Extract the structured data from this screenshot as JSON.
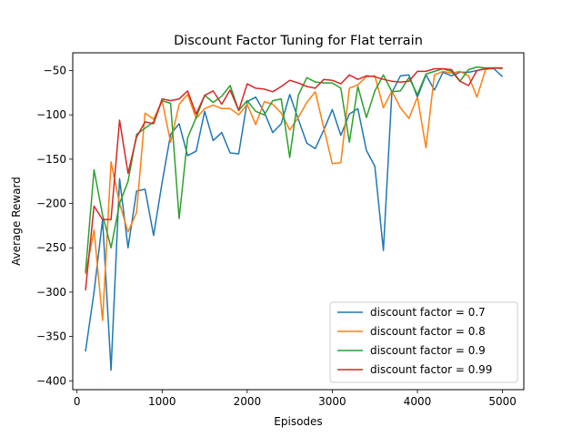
{
  "chart_data": {
    "type": "line",
    "title": "Discount Factor Tuning for Flat terrain",
    "xlabel": "Episodes",
    "ylabel": "Average Reward",
    "xlim": [
      -50,
      5250
    ],
    "ylim": [
      -410,
      -30
    ],
    "xticks": [
      0,
      1000,
      2000,
      3000,
      4000,
      5000
    ],
    "yticks": [
      -400,
      -350,
      -300,
      -250,
      -200,
      -150,
      -100,
      -50
    ],
    "grid": false,
    "legend_position": "lower-right",
    "x": [
      100,
      200,
      300,
      400,
      500,
      600,
      700,
      800,
      900,
      1000,
      1100,
      1200,
      1300,
      1400,
      1500,
      1600,
      1700,
      1800,
      1900,
      2000,
      2100,
      2200,
      2300,
      2400,
      2500,
      2600,
      2700,
      2800,
      2900,
      3000,
      3100,
      3200,
      3300,
      3400,
      3500,
      3600,
      3700,
      3800,
      3900,
      4000,
      4100,
      4200,
      4300,
      4400,
      4500,
      4600,
      4700,
      4800,
      4900,
      5000
    ],
    "series": [
      {
        "name": "discount factor = 0.7",
        "color": "#1f77b4",
        "values": [
          -367,
          -300,
          -218,
          -388,
          -172,
          -250,
          -186,
          -184,
          -236,
          -176,
          -122,
          -110,
          -146,
          -141,
          -96,
          -129,
          -120,
          -143,
          -144,
          -85,
          -80,
          -97,
          -120,
          -110,
          -77,
          -105,
          -132,
          -138,
          -117,
          -94,
          -123,
          -99,
          -93,
          -140,
          -158,
          -253,
          -75,
          -56,
          -55,
          -80,
          -55,
          -72,
          -52,
          -56,
          -52,
          -52,
          -50,
          -48,
          -48,
          -57
        ]
      },
      {
        "name": "discount factor = 0.8",
        "color": "#ff7f0e",
        "values": [
          -280,
          -230,
          -332,
          -153,
          -200,
          -232,
          -210,
          -98,
          -105,
          -84,
          -131,
          -88,
          -77,
          -104,
          -93,
          -89,
          -93,
          -93,
          -100,
          -88,
          -111,
          -85,
          -88,
          -98,
          -117,
          -103,
          -86,
          -74,
          -115,
          -155,
          -154,
          -70,
          -66,
          -57,
          -56,
          -92,
          -73,
          -92,
          -104,
          -80,
          -137,
          -55,
          -51,
          -53,
          -51,
          -56,
          -80,
          -49,
          -47,
          -48
        ]
      },
      {
        "name": "discount factor = 0.9",
        "color": "#2ca02c",
        "values": [
          -278,
          -162,
          -213,
          -250,
          -200,
          -175,
          -122,
          -115,
          -108,
          -84,
          -87,
          -217,
          -126,
          -103,
          -78,
          -86,
          -79,
          -67,
          -95,
          -84,
          -96,
          -100,
          -84,
          -82,
          -148,
          -78,
          -58,
          -63,
          -64,
          -64,
          -70,
          -131,
          -68,
          -103,
          -73,
          -55,
          -74,
          -73,
          -58,
          -77,
          -54,
          -51,
          -48,
          -51,
          -62,
          -49,
          -46,
          -47,
          -47,
          -47
        ]
      },
      {
        "name": "discount factor = 0.99",
        "color": "#d62728",
        "values": [
          -298,
          -203,
          -218,
          -218,
          -106,
          -166,
          -125,
          -108,
          -110,
          -82,
          -84,
          -82,
          -73,
          -99,
          -78,
          -73,
          -88,
          -72,
          -95,
          -65,
          -70,
          -71,
          -74,
          -68,
          -61,
          -64,
          -68,
          -70,
          -60,
          -61,
          -65,
          -55,
          -60,
          -56,
          -57,
          -60,
          -62,
          -63,
          -62,
          -51,
          -51,
          -48,
          -48,
          -49,
          -62,
          -67,
          -50,
          -48,
          -47,
          -47
        ]
      }
    ]
  }
}
